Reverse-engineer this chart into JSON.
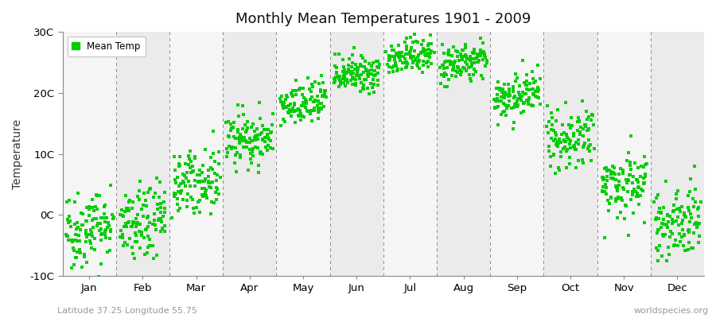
{
  "title": "Monthly Mean Temperatures 1901 - 2009",
  "ylabel": "Temperature",
  "footnote_left": "Latitude 37.25 Longitude 55.75",
  "footnote_right": "worldspecies.org",
  "legend_label": "Mean Temp",
  "marker_color": "#00CC00",
  "background_color": "#FFFFFF",
  "band_color_odd": "#EBEBEB",
  "band_color_even": "#F5F5F5",
  "ylim": [
    -10,
    30
  ],
  "yticks": [
    -10,
    0,
    10,
    20,
    30
  ],
  "ytick_labels": [
    "-10C",
    "0C",
    "10C",
    "20C",
    "30C"
  ],
  "months": [
    "Jan",
    "Feb",
    "Mar",
    "Apr",
    "May",
    "Jun",
    "Jul",
    "Aug",
    "Sep",
    "Oct",
    "Nov",
    "Dec"
  ],
  "month_means": [
    -2.0,
    -1.5,
    5.5,
    12.5,
    18.0,
    23.0,
    26.0,
    25.0,
    19.5,
    12.5,
    5.0,
    -1.0
  ],
  "month_stds": [
    3.2,
    3.0,
    2.5,
    2.2,
    1.8,
    1.5,
    1.4,
    1.6,
    1.8,
    2.2,
    2.8,
    3.2
  ],
  "month_trend": [
    0.015,
    0.015,
    0.012,
    0.01,
    0.008,
    0.007,
    0.006,
    0.007,
    0.008,
    0.01,
    0.012,
    0.015
  ],
  "n_years": 109,
  "start_year": 1901,
  "seed": 42
}
